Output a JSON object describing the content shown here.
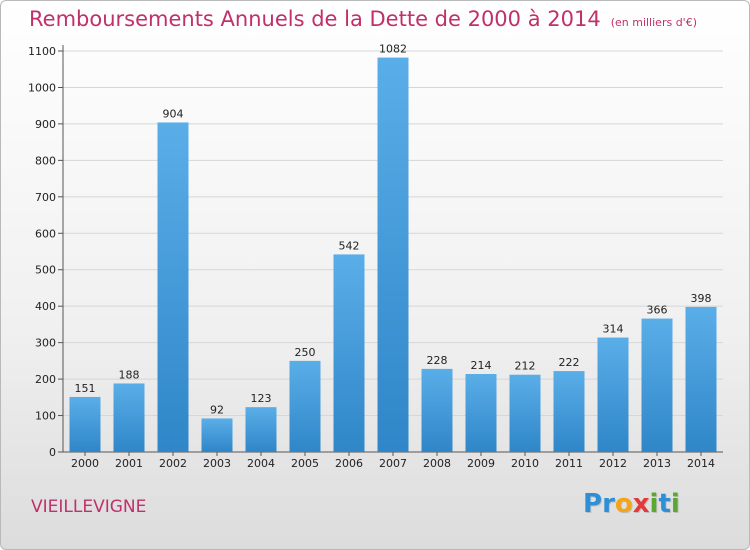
{
  "title": "Remboursements Annuels de la Dette de 2000 à 2014",
  "subtitle": "(en milliers d'€)",
  "commune": "VIEILLEVIGNE",
  "logo": {
    "letters": [
      "P",
      "r",
      "o",
      "x",
      "i",
      "t",
      "i"
    ],
    "colors": [
      "#2f8fd6",
      "#2f8fd6",
      "#f2a51a",
      "#e23a3a",
      "#5aa832",
      "#2f8fd6",
      "#5aa832"
    ]
  },
  "colors": {
    "bar_top": "#5aaee8",
    "bar_bottom": "#2f86c8",
    "grid": "#d6d6d6",
    "text": "#222222",
    "title": "#c0306a"
  },
  "chart_data": {
    "type": "bar",
    "categories": [
      "2000",
      "2001",
      "2002",
      "2003",
      "2004",
      "2005",
      "2006",
      "2007",
      "2008",
      "2009",
      "2010",
      "2011",
      "2012",
      "2013",
      "2014"
    ],
    "values": [
      151,
      188,
      904,
      92,
      123,
      250,
      542,
      1082,
      228,
      214,
      212,
      222,
      314,
      366,
      398
    ],
    "ylim": [
      0,
      1100
    ],
    "yticks": [
      0,
      100,
      200,
      300,
      400,
      500,
      600,
      700,
      800,
      900,
      1000,
      1100
    ],
    "grid": true
  }
}
